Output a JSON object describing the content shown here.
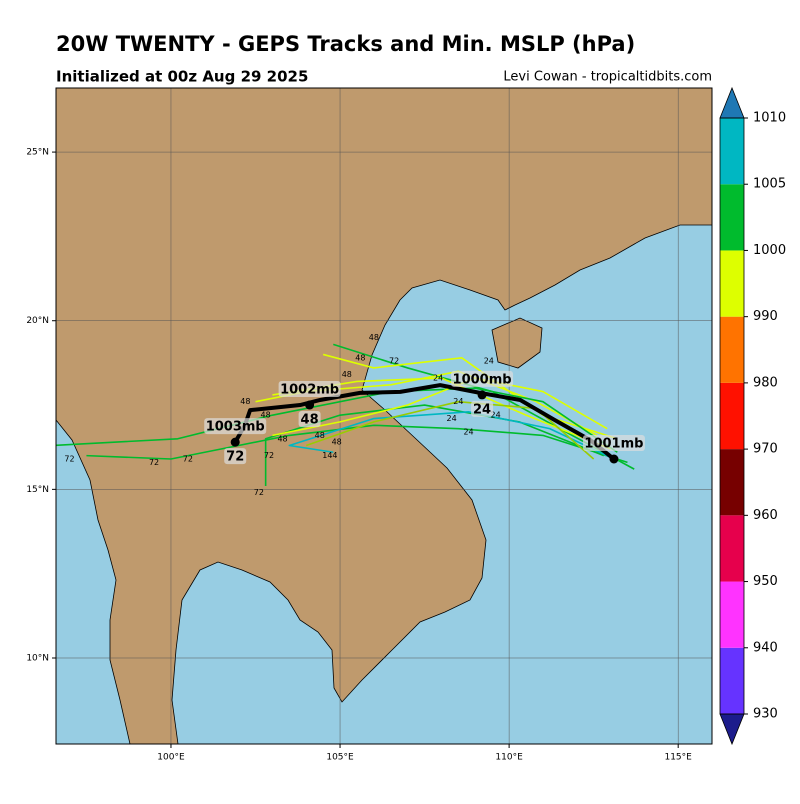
{
  "header": {
    "title": "20W TWENTY - GEPS Tracks and Min. MSLP (hPa)",
    "subtitle": "Initialized at 00z Aug 29 2025",
    "credit": "Levi Cowan - tropicaltidbits.com"
  },
  "chart_data": {
    "type": "map",
    "xlim": [
      96.6,
      116.0
    ],
    "ylim": [
      7.45,
      26.9
    ],
    "xticks": [
      {
        "value": 100,
        "label": "100°E"
      },
      {
        "value": 105,
        "label": "105°E"
      },
      {
        "value": 110,
        "label": "110°E"
      },
      {
        "value": 115,
        "label": "115°E"
      }
    ],
    "yticks": [
      {
        "value": 10,
        "label": "10°N"
      },
      {
        "value": 15,
        "label": "15°N"
      },
      {
        "value": 20,
        "label": "20°N"
      },
      {
        "value": 25,
        "label": "25°N"
      }
    ],
    "grid": true,
    "members": [
      {
        "color": "#00bb2d",
        "lon": [
          113.7,
          111.5,
          109.5,
          107,
          104.8
        ],
        "lat": [
          15.6,
          16.8,
          17.9,
          18.6,
          19.3
        ]
      },
      {
        "color": "#ddff00",
        "lon": [
          112.6,
          110.8,
          108.5,
          106.5,
          104,
          102.5
        ],
        "lat": [
          16.6,
          17.6,
          18.5,
          18.1,
          17.9,
          17.6
        ]
      },
      {
        "color": "#00bb2d",
        "lon": [
          113.5,
          111,
          108.5,
          106,
          103.5,
          101.5,
          100,
          97.5
        ],
        "lat": [
          15.8,
          16.6,
          16.8,
          16.9,
          16.6,
          16.2,
          15.9,
          16.0
        ]
      },
      {
        "color": "#ddff00",
        "lon": [
          113,
          110.5,
          108,
          105.5,
          103
        ],
        "lat": [
          16.2,
          17.2,
          18.3,
          18.2,
          17.8
        ]
      },
      {
        "color": "#00bb2d",
        "lon": [
          112.8,
          110.3,
          107.5,
          105,
          102.8,
          102.8
        ],
        "lat": [
          16.0,
          17.0,
          17.5,
          17.2,
          16.5,
          15.1
        ]
      },
      {
        "color": "#00b7c2",
        "lon": [
          113.1,
          111.2,
          108.8,
          106,
          103.5,
          104.8
        ],
        "lat": [
          15.9,
          16.8,
          17.3,
          17.1,
          16.3,
          16.1
        ]
      },
      {
        "color": "#ddff00",
        "lon": [
          113.2,
          111,
          108.6,
          106,
          104.5
        ],
        "lat": [
          16.5,
          17.2,
          18.9,
          18.6,
          19.0
        ]
      },
      {
        "color": "#00bb2d",
        "lon": [
          113.2,
          111,
          109,
          106.5,
          103,
          100.2,
          96.5
        ],
        "lat": [
          16.1,
          17.6,
          18.0,
          17.9,
          17.2,
          16.5,
          16.3
        ]
      },
      {
        "color": "#99cc00",
        "lon": [
          112.5,
          110.8,
          108.5,
          106,
          104
        ],
        "lat": [
          15.9,
          17.4,
          17.6,
          17.0,
          16.3
        ]
      },
      {
        "color": "#ddff00",
        "lon": [
          112.9,
          111,
          109,
          107,
          105,
          103
        ],
        "lat": [
          16.8,
          17.9,
          18.3,
          17.5,
          17.0,
          16.6
        ]
      }
    ],
    "hour_labels": [
      {
        "hour": 24,
        "lon": 109.4,
        "lat": 18.8
      },
      {
        "hour": 24,
        "lon": 108.5,
        "lat": 17.6
      },
      {
        "hour": 24,
        "lon": 108.3,
        "lat": 17.1
      },
      {
        "hour": 24,
        "lon": 108.8,
        "lat": 16.7
      },
      {
        "hour": 24,
        "lon": 107.9,
        "lat": 18.3
      },
      {
        "hour": 24,
        "lon": 109.6,
        "lat": 17.2
      },
      {
        "hour": 48,
        "lon": 106.0,
        "lat": 19.5
      },
      {
        "hour": 48,
        "lon": 105.6,
        "lat": 18.9
      },
      {
        "hour": 48,
        "lon": 102.2,
        "lat": 17.6
      },
      {
        "hour": 48,
        "lon": 102.8,
        "lat": 17.2
      },
      {
        "hour": 48,
        "lon": 104.4,
        "lat": 16.6
      },
      {
        "hour": 48,
        "lon": 104.9,
        "lat": 16.4
      },
      {
        "hour": 48,
        "lon": 105.2,
        "lat": 18.4
      },
      {
        "hour": 48,
        "lon": 103.3,
        "lat": 16.5
      },
      {
        "hour": 72,
        "lon": 106.6,
        "lat": 18.8
      },
      {
        "hour": 72,
        "lon": 100.5,
        "lat": 15.9
      },
      {
        "hour": 72,
        "lon": 99.5,
        "lat": 15.8
      },
      {
        "hour": 72,
        "lon": 97.0,
        "lat": 15.9
      },
      {
        "hour": 72,
        "lon": 102.6,
        "lat": 14.9
      },
      {
        "hour": 72,
        "lon": 102.9,
        "lat": 16.0
      },
      {
        "hour": 144,
        "lon": 104.7,
        "lat": 16.0
      }
    ],
    "mean_track": {
      "color": "#000000",
      "lon": [
        113.1,
        112.4,
        111.36,
        110.33,
        109.14,
        107.96,
        106.78,
        105.59,
        104.41,
        103.82,
        102.93,
        102.34,
        102.19,
        101.9
      ],
      "lat": [
        15.9,
        16.46,
        17.05,
        17.65,
        17.86,
        18.09,
        17.89,
        17.86,
        17.65,
        17.5,
        17.41,
        17.35,
        16.91,
        16.4
      ]
    },
    "points": [
      {
        "label": "1001mb",
        "hour": null,
        "lon": 113.1,
        "lat": 15.9
      },
      {
        "label": "1000mb",
        "hour": 24,
        "lon": 109.2,
        "lat": 17.8
      },
      {
        "label": "1002mb",
        "hour": 48,
        "lon": 104.1,
        "lat": 17.5
      },
      {
        "label": "1003mb",
        "hour": 72,
        "lon": 101.9,
        "lat": 16.4
      }
    ],
    "colorbar": {
      "bounds": [
        930,
        940,
        950,
        960,
        970,
        980,
        990,
        1000,
        1005,
        1010
      ],
      "colors": [
        "#6633ff",
        "#ff33ff",
        "#e6004c",
        "#770000",
        "#ff1100",
        "#ff7300",
        "#ddff00",
        "#00bb2d",
        "#00b7c2"
      ],
      "under": "#1c1c8c",
      "over": "#1f78b4"
    }
  }
}
